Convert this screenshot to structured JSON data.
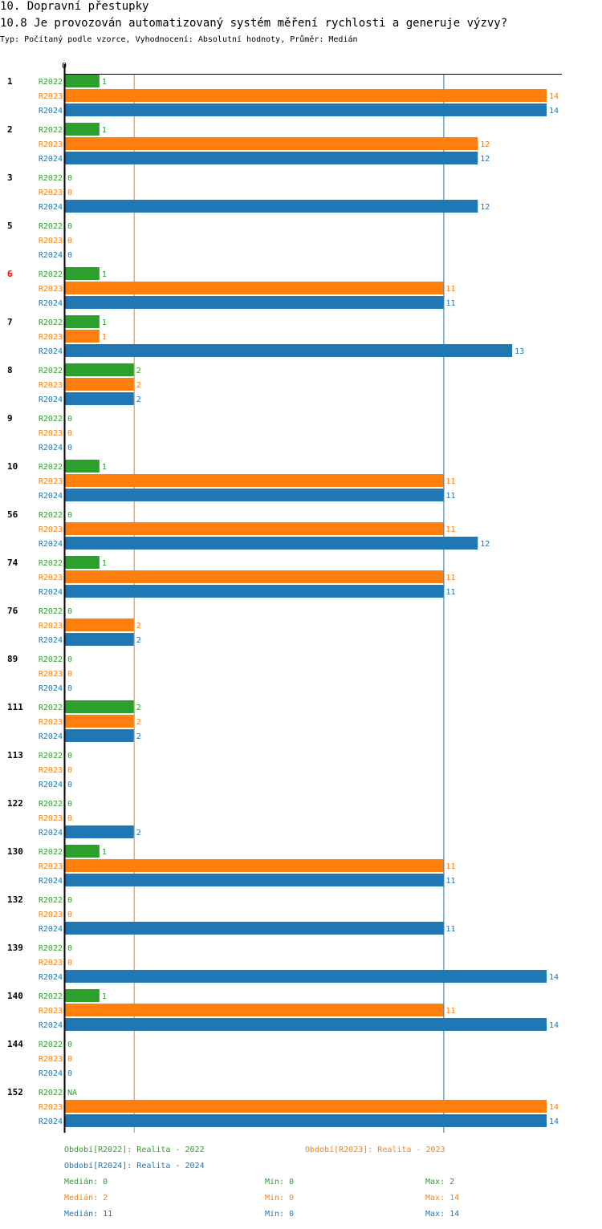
{
  "section_title": "10. Dopravní přestupky",
  "question_title": "10.8 Je provozován automatizovaný systém měření rychlosti a generuje výzvy?",
  "subtitle": "Typ: Počítaný podle vzorce, Vyhodnocení: Absolutní hodnoty, Průměr: Medián",
  "colors": {
    "R2022": "#2ca02c",
    "R2023": "#ff7f0e",
    "R2024": "#1f77b4",
    "highlight": "#ff0000"
  },
  "chart_data": {
    "type": "bar",
    "orientation": "horizontal",
    "xlim": [
      0,
      14
    ],
    "x_tick_labels": [
      "0"
    ],
    "series_names": [
      "R2022",
      "R2023",
      "R2024"
    ],
    "groups": [
      {
        "label": "1",
        "values": [
          1,
          14,
          14
        ]
      },
      {
        "label": "2",
        "values": [
          1,
          12,
          12
        ]
      },
      {
        "label": "3",
        "values": [
          0,
          0,
          12
        ]
      },
      {
        "label": "5",
        "values": [
          0,
          0,
          0
        ]
      },
      {
        "label": "6",
        "values": [
          1,
          11,
          11
        ],
        "highlight": true
      },
      {
        "label": "7",
        "values": [
          1,
          1,
          13
        ]
      },
      {
        "label": "8",
        "values": [
          2,
          2,
          2
        ]
      },
      {
        "label": "9",
        "values": [
          0,
          0,
          0
        ]
      },
      {
        "label": "10",
        "values": [
          1,
          11,
          11
        ]
      },
      {
        "label": "56",
        "values": [
          0,
          11,
          12
        ]
      },
      {
        "label": "74",
        "values": [
          1,
          11,
          11
        ]
      },
      {
        "label": "76",
        "values": [
          0,
          2,
          2
        ]
      },
      {
        "label": "89",
        "values": [
          0,
          0,
          0
        ]
      },
      {
        "label": "111",
        "values": [
          2,
          2,
          2
        ]
      },
      {
        "label": "113",
        "values": [
          0,
          0,
          0
        ]
      },
      {
        "label": "122",
        "values": [
          0,
          0,
          2
        ]
      },
      {
        "label": "130",
        "values": [
          1,
          11,
          11
        ]
      },
      {
        "label": "132",
        "values": [
          0,
          0,
          11
        ]
      },
      {
        "label": "139",
        "values": [
          0,
          0,
          14
        ]
      },
      {
        "label": "140",
        "values": [
          1,
          11,
          14
        ]
      },
      {
        "label": "144",
        "values": [
          0,
          0,
          0
        ]
      },
      {
        "label": "152",
        "values": [
          "NA",
          14,
          14
        ]
      }
    ],
    "median_lines": {
      "R2022": 0,
      "R2023": 2,
      "R2024": 11
    }
  },
  "legend": {
    "r2022": "Období[R2022]: Realita - 2022",
    "r2023": "Období[R2023]: Realita - 2023",
    "r2024": "Období[R2024]: Realita - 2024"
  },
  "stats": [
    {
      "median": "Medián: 0",
      "min": "Min: 0",
      "max": "Max: 2"
    },
    {
      "median": "Medián: 2",
      "min": "Min: 0",
      "max": "Max: 14"
    },
    {
      "median": "Medián: 11",
      "min": "Min: 0",
      "max": "Max: 14"
    }
  ]
}
